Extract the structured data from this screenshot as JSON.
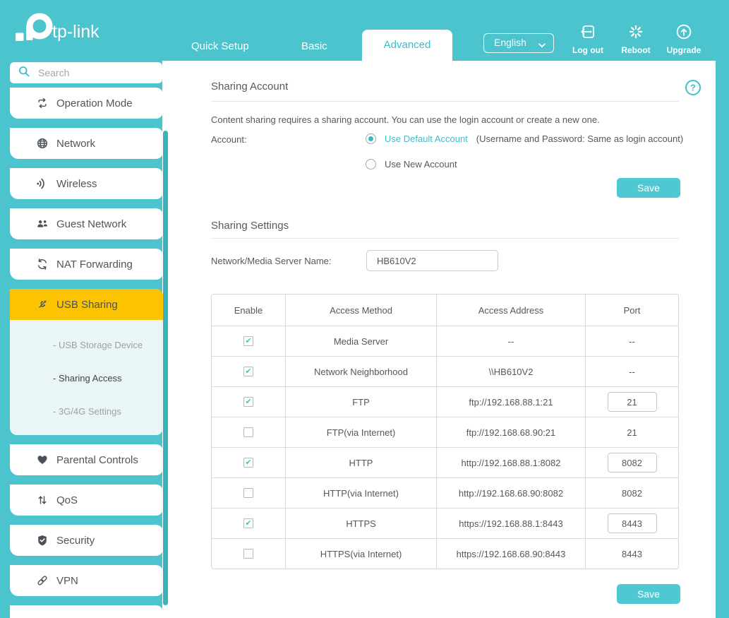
{
  "colors": {
    "accent_teal": "#4bc4ce",
    "highlight_yellow": "#fcc300",
    "active_text_teal": "#3bbcc8"
  },
  "header": {
    "logo_text": "tp-link",
    "tabs": [
      {
        "label": "Quick Setup",
        "active": false
      },
      {
        "label": "Basic",
        "active": false
      },
      {
        "label": "Advanced",
        "active": true
      }
    ],
    "language_select": {
      "value": "English"
    },
    "actions": [
      {
        "label": "Log out",
        "icon": "logout-icon"
      },
      {
        "label": "Reboot",
        "icon": "reboot-icon"
      },
      {
        "label": "Upgrade",
        "icon": "upgrade-icon"
      }
    ]
  },
  "sidebar": {
    "search_placeholder": "Search",
    "items": [
      {
        "label": "Operation Mode",
        "icon": "operation-mode-icon",
        "active": false
      },
      {
        "label": "Network",
        "icon": "globe-icon",
        "active": false
      },
      {
        "label": "Wireless",
        "icon": "wifi-icon",
        "active": false
      },
      {
        "label": "Guest Network",
        "icon": "guest-network-icon",
        "active": false
      },
      {
        "label": "NAT Forwarding",
        "icon": "nat-forwarding-icon",
        "active": false
      },
      {
        "label": "USB Sharing",
        "icon": "usb-icon",
        "active": true
      },
      {
        "label": "Parental Controls",
        "icon": "heart-icon",
        "active": false
      },
      {
        "label": "QoS",
        "icon": "qos-icon",
        "active": false
      },
      {
        "label": "Security",
        "icon": "shield-icon",
        "active": false
      },
      {
        "label": "VPN",
        "icon": "link-icon",
        "active": false
      }
    ],
    "submenu": {
      "items": [
        {
          "label": "- USB Storage Device",
          "active": false
        },
        {
          "label": "- Sharing Access",
          "active": true
        },
        {
          "label": "- 3G/4G Settings",
          "active": false
        }
      ]
    }
  },
  "sharing_account": {
    "title": "Sharing Account",
    "description": "Content sharing requires a sharing account. You can use the login account or create a new one.",
    "account_label": "Account:",
    "options": [
      {
        "label": "Use Default Account",
        "note": "(Username and Password: Same as login account)",
        "selected": true
      },
      {
        "label": "Use New Account",
        "note": "",
        "selected": false
      }
    ],
    "save_label": "Save"
  },
  "sharing_settings": {
    "title": "Sharing Settings",
    "server_name_label": "Network/Media Server Name:",
    "server_name_value": "HB610V2",
    "table": {
      "headers": [
        "Enable",
        "Access Method",
        "Access Address",
        "Port"
      ],
      "rows": [
        {
          "enabled": true,
          "method": "Media Server",
          "address": "--",
          "port": "--",
          "port_editable": false
        },
        {
          "enabled": true,
          "method": "Network Neighborhood",
          "address": "\\\\HB610V2",
          "port": "--",
          "port_editable": false
        },
        {
          "enabled": true,
          "method": "FTP",
          "address": "ftp://192.168.88.1:21",
          "port": "21",
          "port_editable": true
        },
        {
          "enabled": false,
          "method": "FTP(via Internet)",
          "address": "ftp://192.168.68.90:21",
          "port": "21",
          "port_editable": false
        },
        {
          "enabled": true,
          "method": "HTTP",
          "address": "http://192.168.88.1:8082",
          "port": "8082",
          "port_editable": true
        },
        {
          "enabled": false,
          "method": "HTTP(via Internet)",
          "address": "http://192.168.68.90:8082",
          "port": "8082",
          "port_editable": false
        },
        {
          "enabled": true,
          "method": "HTTPS",
          "address": "https://192.168.88.1:8443",
          "port": "8443",
          "port_editable": true
        },
        {
          "enabled": false,
          "method": "HTTPS(via Internet)",
          "address": "https://192.168.68.90:8443",
          "port": "8443",
          "port_editable": false
        }
      ]
    },
    "save_label": "Save"
  }
}
